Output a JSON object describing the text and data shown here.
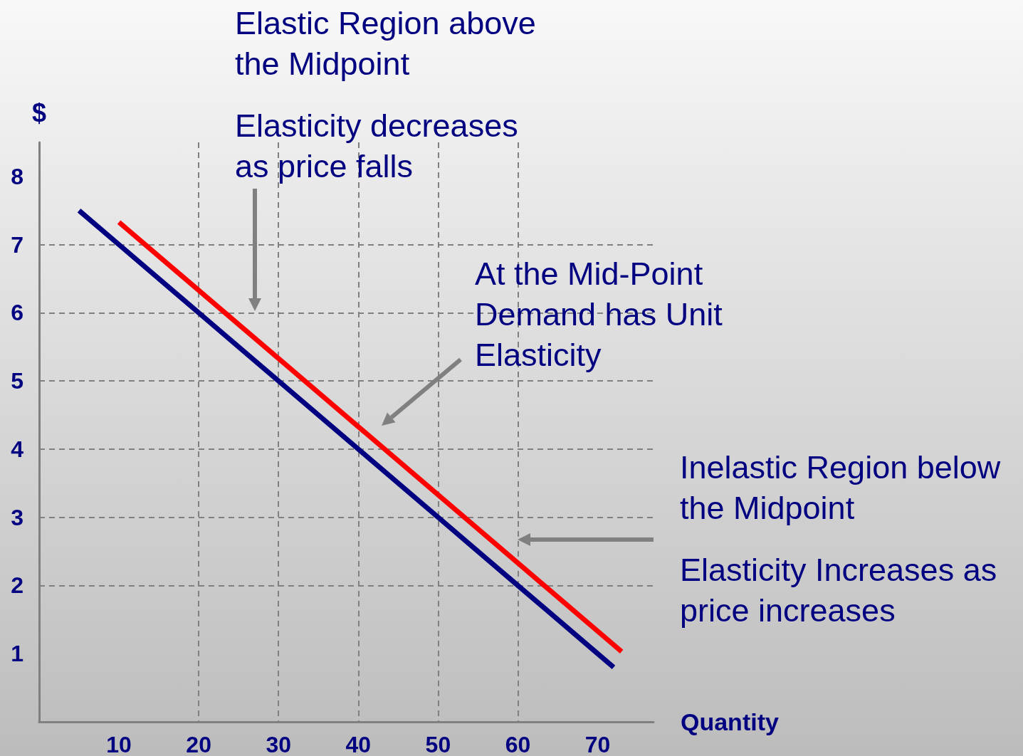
{
  "chart_data": {
    "type": "line",
    "ylabel": "$",
    "xlabel": "Quantity",
    "xlim": [
      0,
      77
    ],
    "xticks": [
      10,
      20,
      30,
      40,
      50,
      60,
      70
    ],
    "ylim": [
      0,
      8.5
    ],
    "yticks": [
      1,
      2,
      3,
      4,
      5,
      6,
      7,
      8
    ],
    "grid": true,
    "marker": "none",
    "line_style": "solid",
    "series": [
      {
        "color": "#000080",
        "x": [
          5,
          10,
          20,
          30,
          40,
          50,
          60,
          70,
          72
        ],
        "values": [
          7.5,
          7,
          6,
          5,
          4,
          3,
          2,
          1,
          0.8
        ]
      },
      {
        "color": "#ff0000",
        "x": [
          10,
          41,
          73
        ],
        "values": [
          7.33,
          4.23,
          1.03
        ]
      }
    ],
    "annotations": [
      "Elastic Region above the Midpoint",
      "Elasticity decreases as price falls",
      "At the Mid-Point Demand has Unit Elasticity",
      "Inelastic Region below the Midpoint",
      "Elasticity Increases as price increases"
    ]
  }
}
